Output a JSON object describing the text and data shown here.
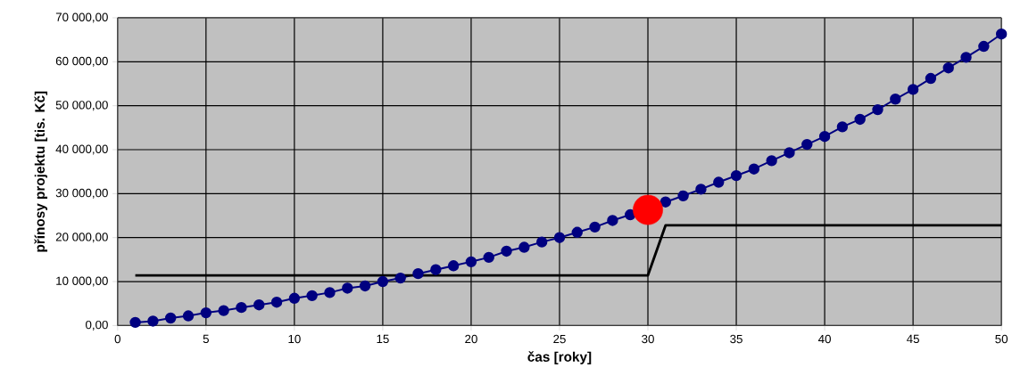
{
  "chart_data": {
    "type": "line",
    "xlabel": "čas [roky]",
    "ylabel": "přínosy projektu [tis. Kč]",
    "xlim": [
      0,
      50
    ],
    "xticks": [
      0,
      5,
      10,
      15,
      20,
      25,
      30,
      35,
      40,
      45,
      50
    ],
    "ylim": [
      0,
      70000
    ],
    "yticks": [
      {
        "value": 0,
        "label": "0,00"
      },
      {
        "value": 10000,
        "label": "10 000,00"
      },
      {
        "value": 20000,
        "label": "20 000,00"
      },
      {
        "value": 30000,
        "label": "30 000,00"
      },
      {
        "value": 40000,
        "label": "40 000,00"
      },
      {
        "value": 50000,
        "label": "50 000,00"
      },
      {
        "value": 60000,
        "label": "60 000,00"
      },
      {
        "value": 70000,
        "label": "70 000,00"
      }
    ],
    "grid": true,
    "series": [
      {
        "marker": "circle",
        "color": "#000080",
        "x": [
          1,
          2,
          3,
          4,
          5,
          6,
          7,
          8,
          9,
          10,
          11,
          12,
          13,
          14,
          15,
          16,
          17,
          18,
          19,
          20,
          21,
          22,
          23,
          24,
          25,
          26,
          27,
          28,
          29,
          30,
          31,
          32,
          33,
          34,
          35,
          36,
          37,
          38,
          39,
          40,
          41,
          42,
          43,
          44,
          45,
          46,
          47,
          48,
          49,
          50
        ],
        "values": [
          700,
          1000,
          1700,
          2200,
          2900,
          3400,
          4100,
          4700,
          5300,
          6200,
          6800,
          7500,
          8500,
          9000,
          10000,
          10800,
          11800,
          12700,
          13600,
          14500,
          15500,
          16900,
          17800,
          19000,
          20000,
          21200,
          22400,
          23900,
          25200,
          null,
          28100,
          29500,
          31000,
          32600,
          34100,
          35600,
          37500,
          39300,
          41200,
          43000,
          45200,
          46900,
          49100,
          51500,
          53700,
          56200,
          58600,
          61000,
          63500,
          66300
        ]
      },
      {
        "type": "line",
        "marker": "none",
        "color": "#000000",
        "x": [
          1,
          30,
          31,
          50
        ],
        "values": [
          11400,
          11400,
          22800,
          22800
        ]
      },
      {
        "type": "scatter",
        "marker": "circle",
        "color": "#ff0000",
        "x": [
          30
        ],
        "values": [
          26300
        ]
      }
    ]
  }
}
